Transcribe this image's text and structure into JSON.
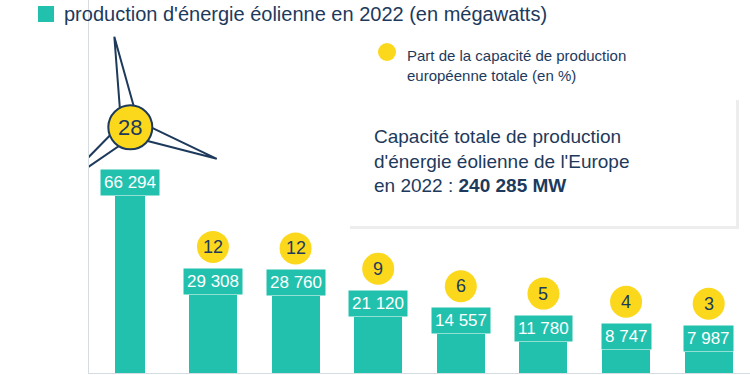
{
  "chart_data": {
    "type": "bar",
    "categories": [
      null,
      null,
      null,
      null,
      null,
      null,
      null,
      null
    ],
    "series": [
      {
        "name": "production d'énergie éolienne en 2022 (en mégawatts)",
        "type": "bar",
        "color": "#22c1ae",
        "values": [
          66294,
          29308,
          28760,
          21120,
          14557,
          11780,
          8747,
          7987
        ],
        "value_labels": [
          "66 294",
          "29 308",
          "28 760",
          "21 120",
          "14 557",
          "11 780",
          "8 747",
          "7 987"
        ]
      },
      {
        "name": "Part de la capacité de production européenne totale (en %)",
        "type": "scatter",
        "marker": "circle",
        "color": "#fcd81c",
        "values": [
          28,
          12,
          12,
          9,
          6,
          5,
          4,
          3
        ]
      }
    ],
    "annotations": [
      {
        "text": [
          "Capacité totale de production",
          "d'énergie éolienne de l'Europe",
          "en 2022 :"
        ],
        "label": "240 285 MW"
      }
    ],
    "ylim": [
      0,
      140000
    ],
    "yticks": [],
    "grid": false,
    "data_labels": true,
    "tick_labels": false
  }
}
